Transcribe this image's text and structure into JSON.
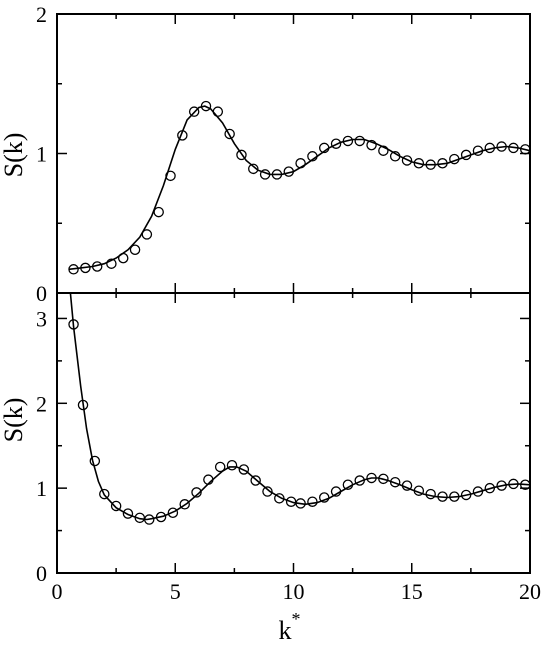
{
  "chart_data": [
    {
      "type": "line",
      "panel": "top",
      "xlabel": "",
      "ylabel": "S(k)",
      "xlim": [
        0,
        20
      ],
      "ylim": [
        0,
        2
      ],
      "xticks": [
        0,
        5,
        10,
        15,
        20
      ],
      "yticks": [
        "0",
        "1",
        "2"
      ],
      "xtick_labels_shown": false,
      "grid": false,
      "legend": "none",
      "series": [
        {
          "style": "solid-line",
          "x": [
            0.5,
            1.0,
            1.5,
            2.0,
            2.5,
            3.0,
            3.5,
            4.0,
            4.5,
            5.0,
            5.5,
            6.0,
            6.25,
            6.5,
            7.0,
            7.5,
            8.0,
            8.5,
            9.0,
            9.5,
            10.0,
            10.5,
            11.0,
            11.5,
            12.0,
            12.5,
            13.0,
            13.5,
            14.0,
            14.5,
            15.0,
            15.5,
            16.0,
            16.5,
            17.0,
            17.5,
            18.0,
            18.5,
            19.0,
            19.5,
            20.0
          ],
          "y": [
            0.17,
            0.18,
            0.19,
            0.21,
            0.25,
            0.31,
            0.4,
            0.55,
            0.77,
            1.03,
            1.24,
            1.33,
            1.34,
            1.32,
            1.22,
            1.07,
            0.95,
            0.88,
            0.85,
            0.85,
            0.87,
            0.92,
            0.98,
            1.04,
            1.08,
            1.1,
            1.1,
            1.07,
            1.03,
            0.98,
            0.94,
            0.92,
            0.92,
            0.93,
            0.96,
            0.99,
            1.02,
            1.04,
            1.05,
            1.04,
            1.02
          ]
        },
        {
          "style": "open-circles",
          "x": [
            0.7,
            1.2,
            1.7,
            2.3,
            2.8,
            3.3,
            3.8,
            4.3,
            4.8,
            5.3,
            5.8,
            6.3,
            6.8,
            7.3,
            7.8,
            8.3,
            8.8,
            9.3,
            9.8,
            10.3,
            10.8,
            11.3,
            11.8,
            12.3,
            12.8,
            13.3,
            13.8,
            14.3,
            14.8,
            15.3,
            15.8,
            16.3,
            16.8,
            17.3,
            17.8,
            18.3,
            18.8,
            19.3,
            19.8
          ],
          "y": [
            0.17,
            0.18,
            0.19,
            0.21,
            0.25,
            0.31,
            0.42,
            0.58,
            0.84,
            1.13,
            1.3,
            1.34,
            1.3,
            1.14,
            0.99,
            0.89,
            0.85,
            0.85,
            0.87,
            0.93,
            0.98,
            1.04,
            1.07,
            1.09,
            1.09,
            1.06,
            1.02,
            0.98,
            0.95,
            0.93,
            0.92,
            0.93,
            0.96,
            0.99,
            1.02,
            1.04,
            1.05,
            1.04,
            1.03
          ]
        }
      ]
    },
    {
      "type": "line",
      "panel": "bottom",
      "xlabel": "k*",
      "ylabel": "S(k)",
      "xlim": [
        0,
        20
      ],
      "ylim": [
        0,
        3.3
      ],
      "xticks": [
        "0",
        "5",
        "10",
        "15",
        "20"
      ],
      "yticks": [
        "0",
        "1",
        "2",
        "3"
      ],
      "grid": false,
      "legend": "none",
      "series": [
        {
          "style": "solid-line",
          "x": [
            0.5,
            0.7,
            1.0,
            1.25,
            1.5,
            1.75,
            2.0,
            2.5,
            3.0,
            3.5,
            3.8,
            4.0,
            4.5,
            5.0,
            5.5,
            6.0,
            6.5,
            7.0,
            7.3,
            7.6,
            8.0,
            8.5,
            9.0,
            9.5,
            10.0,
            10.5,
            11.0,
            11.5,
            12.0,
            12.5,
            13.0,
            13.3,
            13.6,
            14.0,
            14.5,
            15.0,
            15.5,
            16.0,
            16.5,
            17.0,
            17.5,
            18.0,
            18.5,
            19.0,
            19.5,
            20.0
          ],
          "y": [
            3.5,
            2.9,
            2.2,
            1.7,
            1.33,
            1.08,
            0.92,
            0.77,
            0.69,
            0.64,
            0.63,
            0.64,
            0.67,
            0.73,
            0.82,
            0.94,
            1.08,
            1.2,
            1.25,
            1.25,
            1.2,
            1.08,
            0.96,
            0.88,
            0.83,
            0.81,
            0.83,
            0.88,
            0.96,
            1.04,
            1.1,
            1.12,
            1.12,
            1.09,
            1.04,
            0.98,
            0.93,
            0.9,
            0.89,
            0.9,
            0.93,
            0.97,
            1.01,
            1.04,
            1.05,
            1.04
          ]
        },
        {
          "style": "open-circles",
          "x": [
            0.7,
            1.1,
            1.6,
            2.0,
            2.5,
            3.0,
            3.5,
            3.9,
            4.4,
            4.9,
            5.4,
            5.9,
            6.4,
            6.9,
            7.4,
            7.9,
            8.4,
            8.9,
            9.4,
            9.9,
            10.3,
            10.8,
            11.3,
            11.8,
            12.3,
            12.8,
            13.3,
            13.8,
            14.3,
            14.8,
            15.3,
            15.8,
            16.3,
            16.8,
            17.3,
            17.8,
            18.3,
            18.8,
            19.3,
            19.8
          ],
          "y": [
            2.93,
            1.98,
            1.32,
            0.93,
            0.79,
            0.7,
            0.65,
            0.63,
            0.66,
            0.71,
            0.81,
            0.95,
            1.1,
            1.25,
            1.27,
            1.22,
            1.09,
            0.96,
            0.88,
            0.84,
            0.82,
            0.84,
            0.89,
            0.96,
            1.04,
            1.09,
            1.12,
            1.11,
            1.07,
            1.03,
            0.97,
            0.93,
            0.9,
            0.9,
            0.92,
            0.96,
            1.0,
            1.03,
            1.05,
            1.04
          ]
        }
      ]
    }
  ]
}
